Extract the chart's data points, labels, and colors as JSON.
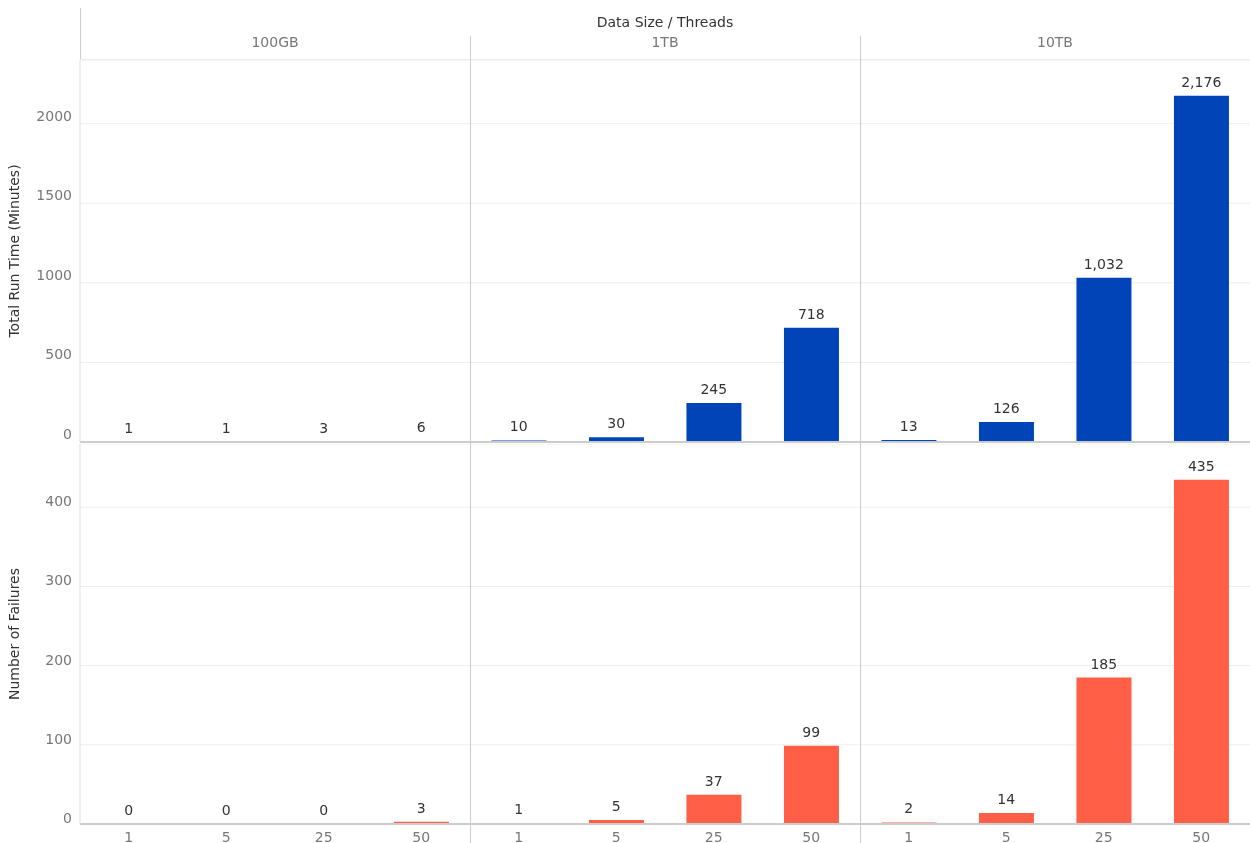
{
  "chart_data": [
    {
      "type": "bar",
      "title": "100GB",
      "annotations": [
        "Data Size / Threads"
      ],
      "ylabel": "Total Run Time (Minutes)",
      "categories": [
        "1",
        "5",
        "25",
        "50"
      ],
      "values": [
        1,
        1,
        3,
        6
      ],
      "color": "#0044b8",
      "ylim": [
        0,
        2400
      ],
      "yticks": [
        0,
        500,
        1000,
        1500,
        2000
      ],
      "grid": "y",
      "data_labels": true,
      "tick_labels": "y"
    },
    {
      "type": "bar",
      "title": "1TB",
      "categories": [
        "1",
        "5",
        "25",
        "50"
      ],
      "values": [
        10,
        30,
        245,
        718
      ],
      "color": "#0044b8",
      "ylim": [
        0,
        2400
      ],
      "yticks": [
        0,
        500,
        1000,
        1500,
        2000
      ],
      "grid": "y",
      "data_labels": true,
      "tick_labels": false
    },
    {
      "type": "bar",
      "title": "10TB",
      "categories": [
        "1",
        "5",
        "25",
        "50"
      ],
      "values": [
        13,
        126,
        1032,
        2176
      ],
      "value_labels": [
        "13",
        "126",
        "1,032",
        "2,176"
      ],
      "color": "#0044b8",
      "ylim": [
        0,
        2400
      ],
      "yticks": [
        0,
        500,
        1000,
        1500,
        2000
      ],
      "grid": "y",
      "tick_labels": false
    },
    {
      "type": "bar",
      "ylabel": "Number of Failures",
      "categories": [
        "1",
        "5",
        "25",
        "50"
      ],
      "values": [
        0,
        0,
        0,
        3
      ],
      "color": "#ff5f46",
      "ylim": [
        0,
        480
      ],
      "yticks": [
        0,
        100,
        200,
        300,
        400
      ],
      "grid": "y",
      "data_labels": true
    },
    {
      "type": "bar",
      "categories": [
        "1",
        "5",
        "25",
        "50"
      ],
      "values": [
        1,
        5,
        37,
        99
      ],
      "color": "#ff5f46",
      "ylim": [
        0,
        480
      ],
      "yticks": [
        0,
        100,
        200,
        300,
        400
      ],
      "grid": "y",
      "data_labels": true,
      "tick_labels": "x"
    },
    {
      "type": "bar",
      "categories": [
        "1",
        "5",
        "25",
        "50"
      ],
      "values": [
        2,
        14,
        185,
        435
      ],
      "color": "#ff5f46",
      "ylim": [
        0,
        480
      ],
      "yticks": [
        0,
        100,
        200,
        300,
        400
      ],
      "grid": "y",
      "data_labels": true,
      "tick_labels": "x"
    }
  ]
}
